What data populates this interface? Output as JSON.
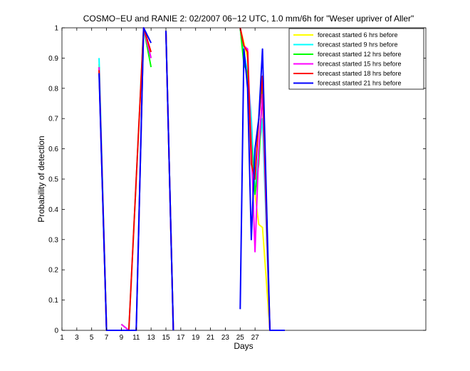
{
  "chart_data": {
    "type": "line",
    "title": "COSMO−EU and RANIE 2: 02/2007 06−12 UTC, 1.0 mm/6h for \"Weser upriver of Aller\"",
    "xlabel": "Days",
    "ylabel": "Probability of detection",
    "xlim": [
      1,
      50
    ],
    "ylim": [
      0,
      1
    ],
    "xticks": [
      1,
      3,
      5,
      7,
      9,
      11,
      13,
      15,
      17,
      19,
      21,
      23,
      25,
      27
    ],
    "xtick_labels": [
      "1",
      "3",
      "5",
      "7",
      "9",
      "11",
      "13",
      "15",
      "17",
      "19",
      "21",
      "23",
      "25",
      "27"
    ],
    "yticks": [
      0,
      0.1,
      0.2,
      0.3,
      0.4,
      0.5,
      0.6,
      0.7,
      0.8,
      0.9,
      1
    ],
    "ytick_labels": [
      "0",
      "0.1",
      "0.2",
      "0.3",
      "0.4",
      "0.5",
      "0.6",
      "0.7",
      "0.8",
      "0.9",
      "1"
    ],
    "grid": false,
    "legend_position": "top-right",
    "series": [
      {
        "name": "forecast started 6 hrs before",
        "color": "#ffff00",
        "points": [
          [
            6,
            0.88
          ],
          [
            7,
            0
          ],
          [
            10,
            0
          ],
          [
            12,
            1
          ],
          [
            13,
            0.9
          ],
          [
            null,
            null
          ],
          [
            15,
            0.99
          ],
          [
            16,
            0
          ],
          [
            null,
            null
          ],
          [
            25,
            1
          ],
          [
            25.5,
            0.95
          ],
          [
            26,
            0.9
          ],
          [
            26.5,
            0.6
          ],
          [
            27,
            0.45
          ],
          [
            27.5,
            0.35
          ],
          [
            28,
            0.34
          ],
          [
            29,
            0
          ],
          [
            31,
            0
          ]
        ]
      },
      {
        "name": "forecast started 9 hrs before",
        "color": "#00ffff",
        "points": [
          [
            6,
            0.9
          ],
          [
            7,
            0
          ],
          [
            10,
            0
          ],
          [
            12,
            1
          ],
          [
            13,
            0.9
          ],
          [
            null,
            null
          ],
          [
            15,
            0.99
          ],
          [
            16,
            0
          ],
          [
            null,
            null
          ],
          [
            25,
            1
          ],
          [
            25.5,
            0.92
          ],
          [
            26,
            0.85
          ],
          [
            26.5,
            0.7
          ],
          [
            27,
            0.45
          ],
          [
            27.5,
            0.6
          ],
          [
            28,
            0.7
          ],
          [
            29,
            0
          ],
          [
            31,
            0
          ]
        ]
      },
      {
        "name": "forecast started 12 hrs before",
        "color": "#00ff00",
        "points": [
          [
            6,
            0.87
          ],
          [
            7,
            0
          ],
          [
            null,
            null
          ],
          [
            9,
            0.02
          ],
          [
            10,
            0
          ],
          [
            11,
            0
          ],
          [
            12,
            1
          ],
          [
            13,
            0.87
          ],
          [
            null,
            null
          ],
          [
            15,
            0.99
          ],
          [
            16,
            0
          ],
          [
            null,
            null
          ],
          [
            25,
            1
          ],
          [
            25.5,
            0.88
          ],
          [
            26,
            0.85
          ],
          [
            26.5,
            0.63
          ],
          [
            27,
            0.45
          ],
          [
            27.5,
            0.55
          ],
          [
            28,
            0.8
          ],
          [
            29,
            0
          ],
          [
            31,
            0
          ]
        ]
      },
      {
        "name": "forecast started 15 hrs before",
        "color": "#ff00ff",
        "points": [
          [
            6,
            0.87
          ],
          [
            7,
            0
          ],
          [
            null,
            null
          ],
          [
            9,
            0.02
          ],
          [
            10,
            0
          ],
          [
            11,
            0
          ],
          [
            12,
            1
          ],
          [
            13,
            0.9
          ],
          [
            null,
            null
          ],
          [
            15,
            0.99
          ],
          [
            16,
            0
          ],
          [
            null,
            null
          ],
          [
            25,
            1
          ],
          [
            25.5,
            0.94
          ],
          [
            26,
            0.93
          ],
          [
            26.5,
            0.6
          ],
          [
            27,
            0.26
          ],
          [
            27.5,
            0.6
          ],
          [
            28,
            0.78
          ],
          [
            29,
            0
          ],
          [
            31,
            0
          ]
        ]
      },
      {
        "name": "forecast started 18 hrs before",
        "color": "#ff0000",
        "points": [
          [
            6,
            0.86
          ],
          [
            7,
            0
          ],
          [
            10,
            0
          ],
          [
            12,
            1
          ],
          [
            13,
            0.92
          ],
          [
            null,
            null
          ],
          [
            15,
            0.99
          ],
          [
            16,
            0
          ],
          [
            null,
            null
          ],
          [
            25,
            1
          ],
          [
            25.5,
            0.94
          ],
          [
            26,
            0.92
          ],
          [
            26.5,
            0.55
          ],
          [
            27,
            0.5
          ],
          [
            27.5,
            0.7
          ],
          [
            28,
            0.84
          ],
          [
            29,
            0
          ],
          [
            31,
            0
          ]
        ]
      },
      {
        "name": "forecast started 21 hrs before",
        "color": "#0000ff",
        "points": [
          [
            6,
            0.85
          ],
          [
            7,
            0
          ],
          [
            10,
            0
          ],
          [
            11,
            0
          ],
          [
            12,
            1
          ],
          [
            13,
            0.95
          ],
          [
            null,
            null
          ],
          [
            15,
            0.99
          ],
          [
            16,
            0
          ],
          [
            null,
            null
          ],
          [
            25,
            0.07
          ],
          [
            25.5,
            0.93
          ],
          [
            26,
            0.8
          ],
          [
            26.5,
            0.3
          ],
          [
            27,
            0.6
          ],
          [
            27.5,
            0.7
          ],
          [
            28,
            0.93
          ],
          [
            29,
            0
          ],
          [
            31,
            0
          ]
        ]
      }
    ]
  }
}
